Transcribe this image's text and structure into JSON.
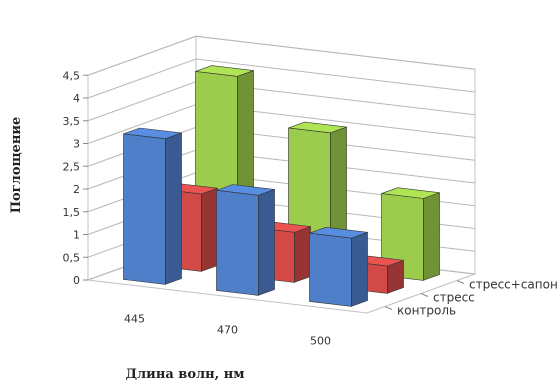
{
  "chart_data": {
    "type": "bar",
    "subtype": "3d-column",
    "categories": [
      "445",
      "470",
      "500"
    ],
    "series": [
      {
        "name": "контроль",
        "values": [
          3.2,
          2.2,
          1.5
        ],
        "color": "#4f7fc9"
      },
      {
        "name": "стресс",
        "values": [
          1.7,
          1.1,
          0.6
        ],
        "color": "#d24a48"
      },
      {
        "name": "стресс+сапонин",
        "values": [
          4.0,
          3.0,
          1.8
        ],
        "color": "#9ccc4c"
      }
    ],
    "xlabel": "Длина волн, нм",
    "ylabel": "Поглощение",
    "yticks": [
      "0",
      "0,5",
      "1",
      "1,5",
      "2",
      "2,5",
      "3",
      "3,5",
      "4",
      "4,5"
    ],
    "ylim": [
      0,
      4.5
    ],
    "grid": true,
    "legend_position": "right"
  }
}
